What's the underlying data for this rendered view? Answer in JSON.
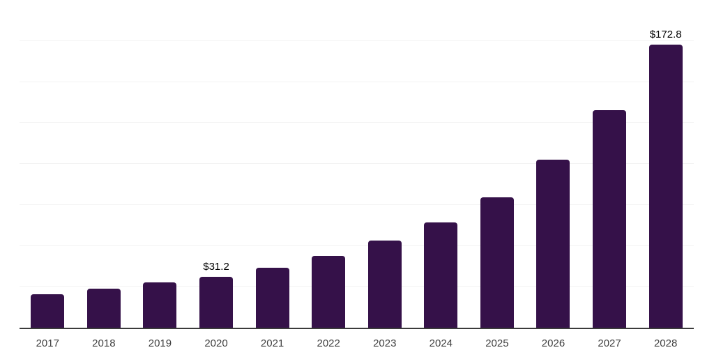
{
  "chart_data": {
    "type": "bar",
    "title": "",
    "xlabel": "",
    "ylabel": "",
    "categories": [
      "2017",
      "2018",
      "2019",
      "2020",
      "2021",
      "2022",
      "2023",
      "2024",
      "2025",
      "2026",
      "2027",
      "2028"
    ],
    "values": [
      20.3,
      24.0,
      27.6,
      31.2,
      36.8,
      43.8,
      53.4,
      64.4,
      79.7,
      102.7,
      132.8,
      172.8
    ],
    "value_labels": [
      "",
      "",
      "",
      "$31.2",
      "",
      "",
      "",
      "",
      "",
      "",
      "",
      "$172.8"
    ],
    "ylim": [
      0,
      200
    ],
    "gridline_step": 25,
    "grid": "horizontal",
    "y_tick_labels_shown": false,
    "legend": "none",
    "colors": {
      "bar": "#351149",
      "gridline": "#f3f3f3",
      "axis": "#3b3b3b",
      "value_label": "#000000",
      "tick_label": "#3f3f3f",
      "background": "#ffffff"
    }
  }
}
